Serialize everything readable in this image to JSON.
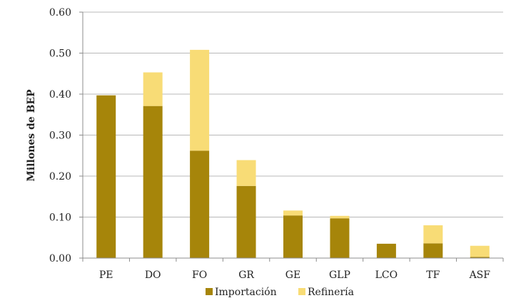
{
  "chart_data": {
    "type": "bar",
    "stacked": true,
    "categories": [
      "PE",
      "DO",
      "FO",
      "GR",
      "GE",
      "GLP",
      "LCO",
      "TF",
      "ASF"
    ],
    "series": [
      {
        "name": "Importación",
        "color": "#a6850a",
        "values": [
          0.397,
          0.371,
          0.262,
          0.176,
          0.104,
          0.097,
          0.035,
          0.036,
          0.003
        ]
      },
      {
        "name": "Refinería",
        "color": "#f8dc76",
        "values": [
          0.0,
          0.082,
          0.246,
          0.063,
          0.012,
          0.006,
          0.0,
          0.044,
          0.027
        ]
      }
    ],
    "title": "",
    "xlabel": "",
    "ylabel": "Millones de BEP",
    "ylim": [
      0,
      0.6
    ],
    "yticks": [
      "0.00",
      "0.10",
      "0.20",
      "0.30",
      "0.40",
      "0.50",
      "0.60"
    ],
    "grid": "horizontal",
    "legend_position": "bottom"
  }
}
